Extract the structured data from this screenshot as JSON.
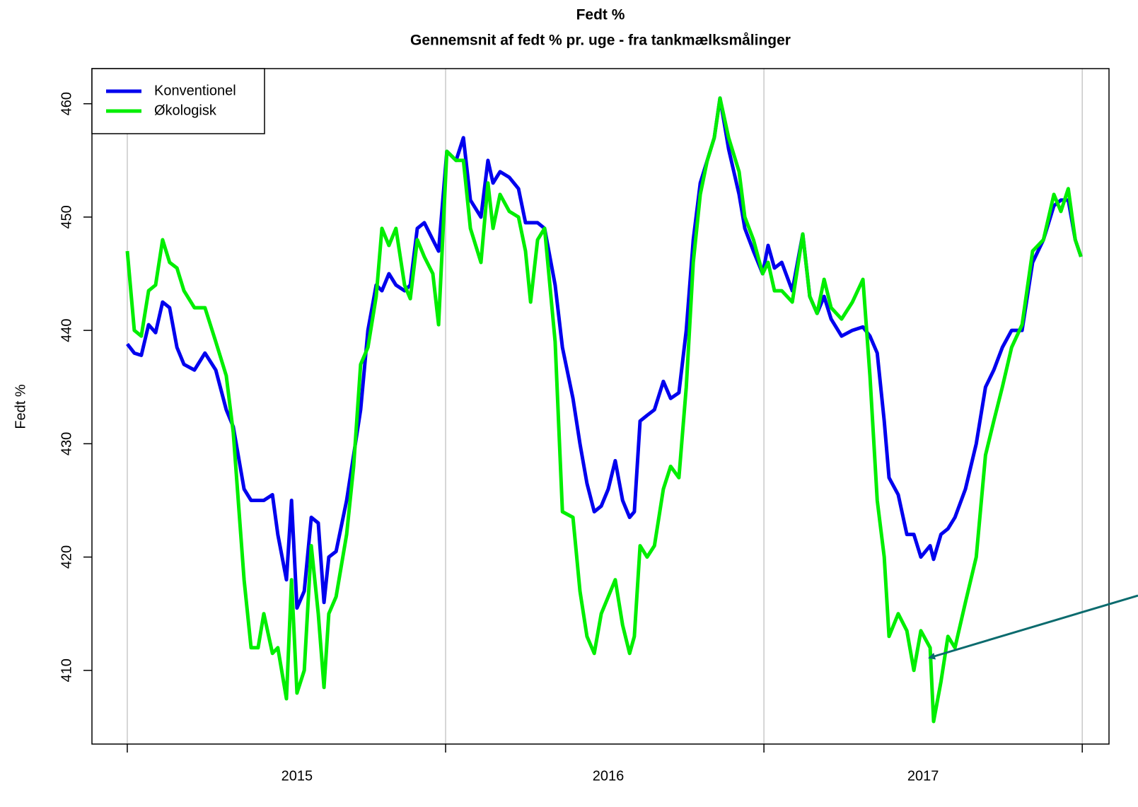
{
  "chart_data": {
    "type": "line",
    "title": "Fedt %",
    "subtitle": "Gennemsnit af fedt % pr. uge - fra tankmælksmålinger",
    "y_label": "Fedt %",
    "xlim": [
      2014.889,
      2018.084
    ],
    "ylim": [
      403.5,
      463.1
    ],
    "xticks": [
      {
        "value": 2015.533,
        "label": "2015"
      },
      {
        "value": 2016.511,
        "label": "2016"
      },
      {
        "value": 2017.5,
        "label": "2017"
      }
    ],
    "xgrid": [
      2015,
      2016,
      2017,
      2018
    ],
    "yticks": [
      410,
      420,
      430,
      440,
      450,
      460
    ],
    "legend": "top-left",
    "x": [
      2015.0,
      2015.022,
      2015.044,
      2015.067,
      2015.089,
      2015.111,
      2015.133,
      2015.156,
      2015.178,
      2015.211,
      2015.244,
      2015.278,
      2015.311,
      2015.333,
      2015.367,
      2015.389,
      2015.411,
      2015.429,
      2015.456,
      2015.473,
      2015.5,
      2015.516,
      2015.533,
      2015.556,
      2015.578,
      2015.6,
      2015.618,
      2015.633,
      2015.656,
      2015.689,
      2015.711,
      2015.733,
      2015.756,
      2015.782,
      2015.8,
      2015.822,
      2015.844,
      2015.871,
      2015.889,
      2015.911,
      2015.933,
      2015.96,
      2015.978,
      2016.004,
      2016.033,
      2016.056,
      2016.078,
      2016.111,
      2016.133,
      2016.149,
      2016.171,
      2016.2,
      2016.229,
      2016.251,
      2016.267,
      2016.289,
      2016.311,
      2016.344,
      2016.367,
      2016.4,
      2016.422,
      2016.444,
      2016.467,
      2016.489,
      2016.511,
      2016.533,
      2016.556,
      2016.578,
      2016.593,
      2016.611,
      2016.633,
      2016.656,
      2016.684,
      2016.707,
      2016.733,
      2016.756,
      2016.778,
      2016.8,
      2016.822,
      2016.844,
      2016.862,
      2016.889,
      2016.922,
      2016.94,
      2016.967,
      2016.996,
      2017.013,
      2017.033,
      2017.056,
      2017.089,
      2017.122,
      2017.144,
      2017.167,
      2017.189,
      2017.211,
      2017.244,
      2017.278,
      2017.311,
      2017.333,
      2017.356,
      2017.378,
      2017.393,
      2017.422,
      2017.449,
      2017.471,
      2017.493,
      2017.522,
      2017.533,
      2017.556,
      2017.578,
      2017.6,
      2017.633,
      2017.667,
      2017.696,
      2017.722,
      2017.749,
      2017.778,
      2017.811,
      2017.844,
      2017.878,
      2017.911,
      2017.933,
      2017.956,
      2017.978,
      2017.996
    ],
    "series": [
      {
        "name": "Konventionel",
        "color": "#0000ee",
        "values": [
          438.8,
          438,
          437.8,
          440.5,
          439.8,
          442.5,
          442,
          438.5,
          437,
          436.5,
          438,
          436.5,
          433,
          431.5,
          426,
          425,
          425,
          425,
          425.5,
          422,
          418,
          425,
          415.5,
          417,
          423.5,
          423,
          416,
          420,
          420.5,
          425,
          429,
          433,
          440,
          444,
          443.5,
          445,
          444,
          443.5,
          444,
          449,
          449.5,
          448,
          447,
          455.8,
          455,
          457,
          451.5,
          450,
          455,
          453,
          454,
          453.5,
          452.5,
          449.5,
          449.5,
          449.5,
          449,
          444,
          438.5,
          434,
          430,
          426.5,
          424,
          424.5,
          426,
          428.5,
          425,
          423.5,
          424,
          432,
          432.5,
          433,
          435.5,
          434,
          434.5,
          440,
          448,
          453,
          455,
          457,
          460.5,
          456,
          452,
          449,
          447,
          445,
          447.5,
          445.5,
          446,
          443.5,
          448.5,
          443,
          441.5,
          443,
          441,
          439.5,
          440,
          440.3,
          439.5,
          438,
          432,
          427,
          425.5,
          422,
          422,
          420,
          421,
          419.8,
          422,
          422.5,
          423.5,
          426,
          430,
          435,
          436.5,
          438.5,
          440,
          440,
          446,
          448,
          451,
          451.5,
          451.5,
          448,
          446.5
        ]
      },
      {
        "name": "Økologisk",
        "color": "#00ee00",
        "values": [
          447,
          440,
          439.5,
          443.5,
          444,
          448,
          446,
          445.5,
          443.5,
          442,
          442,
          439,
          436,
          431,
          418,
          412,
          412,
          415,
          411.5,
          412,
          407.5,
          418,
          408,
          410,
          421,
          415,
          408.5,
          415,
          416.5,
          422,
          428,
          437,
          438.5,
          443,
          449,
          447.5,
          449,
          444,
          442.8,
          448,
          446.5,
          445,
          440.5,
          455.8,
          455,
          455,
          449,
          446,
          453,
          449,
          452,
          450.5,
          450,
          447,
          442.5,
          448,
          449,
          439,
          424,
          423.5,
          417,
          413,
          411.5,
          415,
          416.5,
          418,
          414,
          411.5,
          413,
          421,
          420,
          421,
          426,
          428,
          427,
          435,
          446,
          452,
          455,
          457,
          460.5,
          457,
          454,
          450,
          448,
          445,
          446,
          443.5,
          443.5,
          442.5,
          448.5,
          443,
          441.5,
          444.5,
          442,
          441,
          442.5,
          444.5,
          436,
          425,
          420,
          413,
          415,
          413.5,
          410,
          413.5,
          412,
          405.5,
          409,
          413,
          412,
          416,
          420,
          429,
          432,
          435,
          438.5,
          440.5,
          447,
          448,
          452,
          450.5,
          452.5,
          448,
          446.5
        ]
      }
    ]
  }
}
